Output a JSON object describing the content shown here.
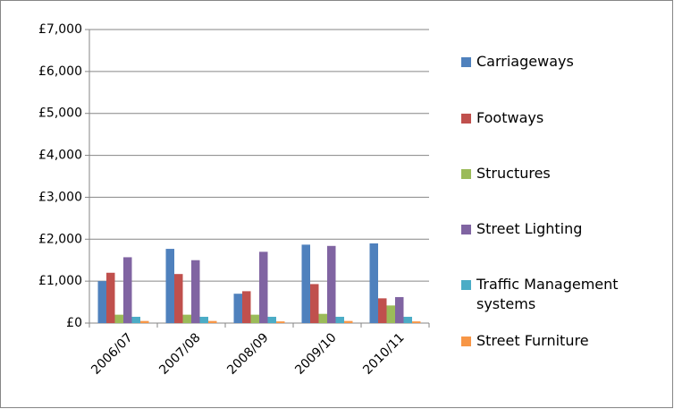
{
  "chart_data": {
    "type": "bar",
    "categories": [
      "2006/07",
      "2007/08",
      "2008/09",
      "2009/10",
      "2010/11"
    ],
    "series": [
      {
        "name": "Carriageways",
        "color": "#4f81bd",
        "values": [
          1000,
          1770,
          700,
          1870,
          1900
        ]
      },
      {
        "name": "Footways",
        "color": "#c0504d",
        "values": [
          1200,
          1170,
          760,
          930,
          590
        ]
      },
      {
        "name": "Structures",
        "color": "#9bbb59",
        "values": [
          200,
          200,
          200,
          220,
          420
        ]
      },
      {
        "name": "Street Lighting",
        "color": "#8064a2",
        "values": [
          1570,
          1500,
          1700,
          1840,
          620
        ]
      },
      {
        "name": "Traffic Management systems",
        "color": "#4bacc6",
        "values": [
          150,
          150,
          150,
          150,
          150
        ]
      },
      {
        "name": "Street Furniture",
        "color": "#f79646",
        "values": [
          50,
          50,
          40,
          50,
          40
        ]
      }
    ],
    "ylim": [
      0,
      7000
    ],
    "yticks": [
      {
        "value": 0,
        "label": "£0"
      },
      {
        "value": 1000,
        "label": "£1,000"
      },
      {
        "value": 2000,
        "label": "£2,000"
      },
      {
        "value": 3000,
        "label": "£3,000"
      },
      {
        "value": 4000,
        "label": "£4,000"
      },
      {
        "value": 5000,
        "label": "£5,000"
      },
      {
        "value": 6000,
        "label": "£6,000"
      },
      {
        "value": 7000,
        "label": "£7,000"
      }
    ],
    "legend": "right"
  }
}
